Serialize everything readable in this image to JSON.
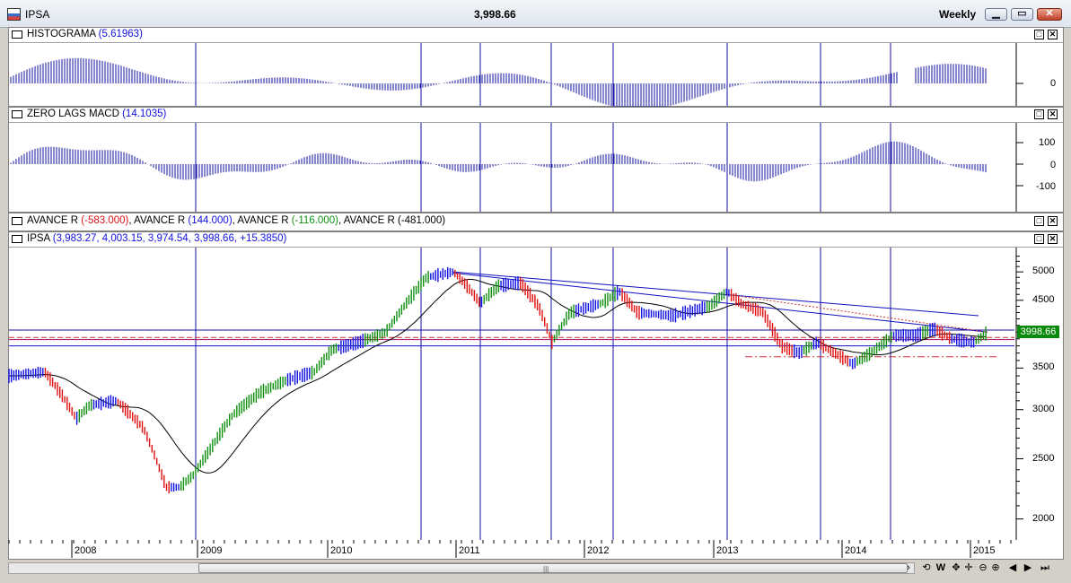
{
  "window": {
    "title": "IPSA",
    "last_price": "3,998.66",
    "period": "Weekly",
    "buttons": [
      "minimize",
      "restore",
      "close"
    ]
  },
  "panels": {
    "histogram": {
      "name": "HISTOGRAMA",
      "value": "(5.61963)",
      "axis_labels": [
        "0"
      ]
    },
    "macd": {
      "name": "ZERO LAGS MACD",
      "value": "(14.1035)",
      "axis_labels": [
        "100",
        "0",
        "-100"
      ]
    },
    "avance": {
      "items": [
        {
          "name": "AVANCE R",
          "value": "(-583.000)",
          "color": "red"
        },
        {
          "name": "AVANCE R",
          "value": "(144.000)",
          "color": "blue"
        },
        {
          "name": "AVANCE R",
          "value": "(-116.000)",
          "color": "green"
        },
        {
          "name": "AVANCE R",
          "value": "(-481.000)",
          "color": "black"
        }
      ],
      "separator": ", "
    },
    "price": {
      "name": "IPSA",
      "value": "(3,983.27, 4,003.15, 3,974.54, 3,998.66, +15.3850)",
      "axis_labels": [
        "5000",
        "4500",
        "4000",
        "3500",
        "3000",
        "2500",
        "2000"
      ],
      "last_price_tag": "3998.66"
    }
  },
  "time_axis": {
    "labels": [
      "2008",
      "2009",
      "2010",
      "2011",
      "2012",
      "2013",
      "2014",
      "2015"
    ]
  },
  "toolbar": {
    "items": [
      "prev",
      "W",
      "move",
      "zoom-out",
      "zoom-in",
      "back",
      "forward",
      "end"
    ]
  },
  "chart_data": {
    "type": "line",
    "title": "",
    "x": [
      "2008",
      "2009",
      "2010",
      "2011",
      "2012",
      "2013",
      "2014",
      "2015"
    ],
    "series": [
      {
        "values": [
          3300,
          2300,
          3600,
          4950,
          4200,
          4500,
          3650,
          3998.66
        ]
      }
    ],
    "yscale": "log",
    "ylim": [
      1900,
      5400
    ],
    "colors": {
      "up": "#109010",
      "down": "#e01010",
      "neutral": "#1010e0"
    },
    "last_value": 3998.66
  }
}
